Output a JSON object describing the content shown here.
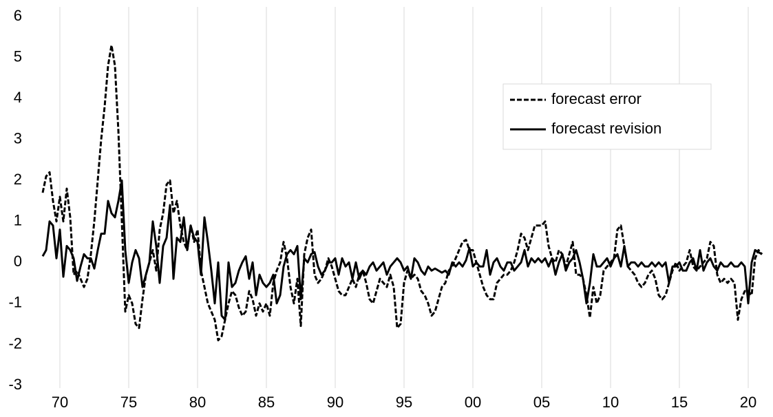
{
  "chart_data": {
    "type": "line",
    "x": [
      1968.75,
      1969,
      1969.25,
      1969.5,
      1969.75,
      1970,
      1970.25,
      1970.5,
      1970.75,
      1971,
      1971.25,
      1971.5,
      1971.75,
      1972,
      1972.25,
      1972.5,
      1972.75,
      1973,
      1973.25,
      1973.5,
      1973.75,
      1974,
      1974.25,
      1974.5,
      1974.75,
      1975,
      1975.25,
      1975.5,
      1975.75,
      1976,
      1976.25,
      1976.5,
      1976.75,
      1977,
      1977.25,
      1977.5,
      1977.75,
      1978,
      1978.25,
      1978.5,
      1978.75,
      1979,
      1979.25,
      1979.5,
      1979.75,
      1980,
      1980.25,
      1980.5,
      1980.75,
      1981,
      1981.25,
      1981.5,
      1981.75,
      1982,
      1982.25,
      1982.5,
      1982.75,
      1983,
      1983.25,
      1983.5,
      1983.75,
      1984,
      1984.25,
      1984.5,
      1984.75,
      1985,
      1985.25,
      1985.5,
      1985.75,
      1986,
      1986.25,
      1986.5,
      1986.75,
      1987,
      1987.25,
      1987.5,
      1987.75,
      1988,
      1988.25,
      1988.5,
      1988.75,
      1989,
      1989.25,
      1989.5,
      1989.75,
      1990,
      1990.25,
      1990.5,
      1990.75,
      1991,
      1991.25,
      1991.5,
      1991.75,
      1992,
      1992.25,
      1992.5,
      1992.75,
      1993,
      1993.25,
      1993.5,
      1993.75,
      1994,
      1994.25,
      1994.5,
      1994.75,
      1995,
      1995.25,
      1995.5,
      1995.75,
      1996,
      1996.25,
      1996.5,
      1996.75,
      1997,
      1997.25,
      1997.5,
      1997.75,
      1998,
      1998.25,
      1998.5,
      1998.75,
      1999,
      1999.25,
      1999.5,
      1999.75,
      2000,
      2000.25,
      2000.5,
      2000.75,
      2001,
      2001.25,
      2001.5,
      2001.75,
      2002,
      2002.25,
      2002.5,
      2002.75,
      2003,
      2003.25,
      2003.5,
      2003.75,
      2004,
      2004.25,
      2004.5,
      2004.75,
      2005,
      2005.25,
      2005.5,
      2005.75,
      2006,
      2006.25,
      2006.5,
      2006.75,
      2007,
      2007.25,
      2007.5,
      2007.75,
      2008,
      2008.25,
      2008.5,
      2008.75,
      2009,
      2009.25,
      2009.5,
      2009.75,
      2010,
      2010.25,
      2010.5,
      2010.75,
      2011,
      2011.25,
      2011.5,
      2011.75,
      2012,
      2012.25,
      2012.5,
      2012.75,
      2013,
      2013.25,
      2013.5,
      2013.75,
      2014,
      2014.25,
      2014.5,
      2014.75,
      2015,
      2015.25,
      2015.5,
      2015.75,
      2016,
      2016.25,
      2016.5,
      2016.75,
      2017,
      2017.25,
      2017.5,
      2017.75,
      2018,
      2018.25,
      2018.5,
      2018.75,
      2019,
      2019.25,
      2019.5,
      2019.75,
      2020,
      2020.25,
      2020.5,
      2020.75,
      2021
    ],
    "series": [
      {
        "name": "forecast error",
        "color": "#000000",
        "dashed": true,
        "values": [
          1.7,
          2.1,
          2.2,
          1.5,
          1.0,
          1.6,
          1.0,
          1.8,
          1.1,
          -0.3,
          -0.2,
          -0.4,
          -0.6,
          -0.4,
          0.2,
          1.0,
          2.0,
          3.0,
          3.8,
          4.8,
          5.3,
          4.8,
          3.2,
          1.0,
          -1.2,
          -0.8,
          -1.0,
          -1.5,
          -1.6,
          -0.9,
          -0.3,
          0.0,
          0.3,
          -0.2,
          0.8,
          1.2,
          1.9,
          2.0,
          1.2,
          1.5,
          0.9,
          0.5,
          0.3,
          0.9,
          0.5,
          0.8,
          -0.2,
          -0.6,
          -1.0,
          -1.2,
          -1.4,
          -1.9,
          -1.8,
          -1.4,
          -1.0,
          -0.7,
          -0.8,
          -1.1,
          -1.3,
          -1.2,
          -0.7,
          -0.9,
          -1.3,
          -1.0,
          -1.2,
          -1.0,
          -1.3,
          -0.5,
          -0.2,
          0.0,
          0.5,
          0.1,
          -0.6,
          -1.0,
          -0.4,
          -1.55,
          0.2,
          0.6,
          0.8,
          -0.3,
          -0.5,
          -0.4,
          -0.2,
          0.1,
          -0.1,
          -0.4,
          -0.7,
          -0.8,
          -0.8,
          -0.6,
          -0.4,
          -0.6,
          -0.3,
          -0.2,
          -0.5,
          -0.9,
          -1.0,
          -0.7,
          -0.4,
          -0.5,
          -0.6,
          -0.3,
          -0.6,
          -1.6,
          -1.5,
          -0.5,
          -0.2,
          -0.4,
          -0.3,
          -0.4,
          -0.7,
          -0.8,
          -1.0,
          -1.3,
          -1.2,
          -0.9,
          -0.6,
          -0.5,
          -0.2,
          -0.1,
          0.1,
          0.3,
          0.5,
          0.55,
          0.3,
          0.3,
          0.0,
          -0.3,
          -0.6,
          -0.8,
          -0.9,
          -0.9,
          -0.5,
          -0.4,
          -0.3,
          -0.3,
          -0.2,
          0.0,
          0.3,
          0.7,
          0.6,
          0.3,
          0.6,
          0.9,
          0.9,
          0.9,
          1.0,
          0.4,
          0.1,
          0.0,
          0.3,
          0.2,
          -0.1,
          0.2,
          0.5,
          -0.3,
          -0.3,
          -0.4,
          -0.8,
          -1.35,
          -0.6,
          -1.0,
          -0.8,
          -0.2,
          -0.1,
          0.0,
          0.1,
          0.8,
          0.9,
          0.4,
          -0.1,
          -0.2,
          -0.3,
          -0.5,
          -0.6,
          -0.5,
          -0.3,
          -0.2,
          -0.4,
          -0.8,
          -0.9,
          -0.8,
          -0.5,
          -0.2,
          0.0,
          -0.2,
          -0.1,
          0.0,
          0.3,
          -0.1,
          -0.2,
          -0.1,
          0.0,
          0.1,
          0.5,
          0.4,
          -0.3,
          -0.5,
          -0.4,
          -0.5,
          -0.4,
          -0.5,
          -1.4,
          -0.9,
          -0.7,
          -0.7,
          -0.8,
          0.1,
          0.3,
          0.2
        ]
      },
      {
        "name": "forecast revision",
        "color": "#000000",
        "dashed": false,
        "values": [
          0.15,
          0.3,
          1.0,
          0.9,
          0.1,
          0.8,
          -0.35,
          0.4,
          0.3,
          0.1,
          -0.45,
          -0.1,
          0.2,
          0.1,
          0.1,
          -0.15,
          0.3,
          0.7,
          0.7,
          1.5,
          1.2,
          1.1,
          1.5,
          2.0,
          0.3,
          -0.5,
          0.0,
          0.3,
          0.1,
          -0.6,
          -0.3,
          0.0,
          1.0,
          0.4,
          -0.5,
          0.4,
          0.6,
          1.4,
          -0.4,
          0.6,
          0.5,
          1.1,
          0.3,
          0.9,
          0.6,
          0.5,
          -0.3,
          1.1,
          0.5,
          -0.2,
          -1.0,
          0.0,
          -1.3,
          -1.4,
          0.0,
          -0.6,
          -0.5,
          -0.2,
          0.0,
          0.15,
          -0.4,
          0.0,
          -0.8,
          -0.3,
          -0.5,
          -0.6,
          -0.5,
          -0.3,
          -1.0,
          -0.8,
          -0.1,
          0.2,
          0.3,
          0.2,
          0.4,
          -0.9,
          0.1,
          0.0,
          0.2,
          0.25,
          -0.1,
          -0.3,
          -0.2,
          0.0,
          0.0,
          0.1,
          -0.3,
          0.1,
          -0.1,
          0.0,
          -0.4,
          0.0,
          -0.4,
          -0.2,
          -0.3,
          -0.1,
          0.0,
          -0.2,
          -0.1,
          0.0,
          -0.3,
          -0.1,
          0.0,
          0.1,
          0.0,
          -0.2,
          -0.1,
          -0.4,
          0.1,
          0.0,
          -0.2,
          -0.3,
          -0.1,
          -0.2,
          -0.15,
          -0.2,
          -0.25,
          -0.2,
          -0.3,
          0.0,
          -0.1,
          0.0,
          -0.1,
          0.05,
          0.35,
          -0.1,
          0.0,
          -0.1,
          -0.1,
          0.3,
          -0.3,
          0.0,
          0.1,
          -0.1,
          -0.2,
          0.0,
          0.0,
          -0.2,
          -0.1,
          0.0,
          0.3,
          -0.1,
          0.1,
          0.0,
          0.1,
          0.0,
          0.1,
          -0.1,
          0.1,
          -0.3,
          0.0,
          0.2,
          -0.2,
          0.0,
          0.1,
          0.3,
          0.0,
          -0.4,
          -1.0,
          -0.5,
          0.2,
          -0.1,
          -0.1,
          0.0,
          0.1,
          -0.1,
          0.1,
          0.2,
          -0.1,
          0.4,
          -0.1,
          0.0,
          0.0,
          -0.1,
          0.0,
          -0.1,
          -0.1,
          0.0,
          -0.1,
          0.0,
          -0.1,
          0.0,
          -0.5,
          -0.1,
          -0.1,
          0.0,
          -0.2,
          -0.2,
          0.0,
          0.1,
          -0.2,
          0.3,
          -0.2,
          0.0,
          0.1,
          -0.1,
          -0.2,
          0.0,
          -0.1,
          -0.1,
          0.0,
          -0.1,
          -0.1,
          0.0,
          -0.1,
          -1.0,
          0.0,
          0.3,
          0.25,
          0.2
        ]
      }
    ],
    "xlim": [
      1967.5,
      2021.15
    ],
    "xticks": [
      {
        "value": 1970,
        "label": "70"
      },
      {
        "value": 1975,
        "label": "75"
      },
      {
        "value": 1980,
        "label": "80"
      },
      {
        "value": 1985,
        "label": "85"
      },
      {
        "value": 1990,
        "label": "90"
      },
      {
        "value": 1995,
        "label": "95"
      },
      {
        "value": 2000,
        "label": "00"
      },
      {
        "value": 2005,
        "label": "05"
      },
      {
        "value": 2010,
        "label": "10"
      },
      {
        "value": 2015,
        "label": "15"
      },
      {
        "value": 2020,
        "label": "20"
      }
    ],
    "ylim": [
      -3,
      6
    ],
    "yticks": [
      -3,
      -2,
      -1,
      0,
      1,
      2,
      3,
      4,
      5,
      6
    ],
    "grid": "x",
    "legend": "upper right"
  }
}
